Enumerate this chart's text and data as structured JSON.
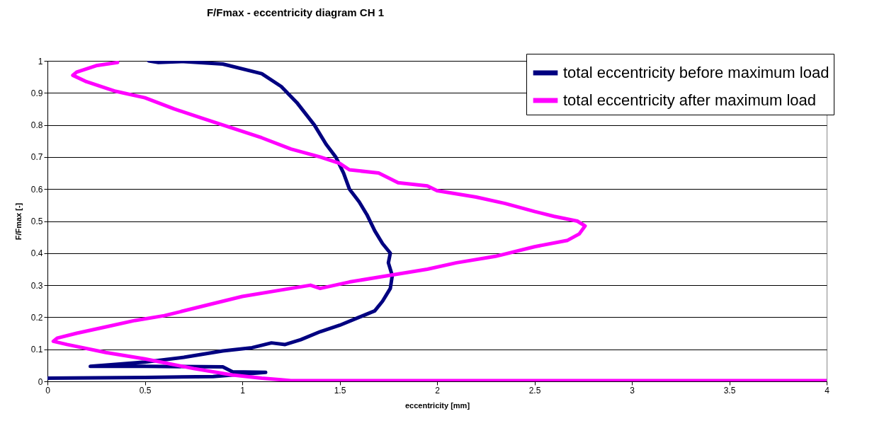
{
  "chart_data": {
    "type": "line",
    "title": "F/Fmax - eccentricity diagram CH 1",
    "xlabel": "eccentricity [mm]",
    "ylabel": "F/Fmax [-]",
    "xlim": [
      0,
      4
    ],
    "xticks": [
      0,
      0.5,
      1,
      1.5,
      2,
      2.5,
      3,
      3.5,
      4
    ],
    "ylim": [
      0,
      1
    ],
    "yticks": [
      0,
      0.1,
      0.2,
      0.3,
      0.4,
      0.5,
      0.6,
      0.7,
      0.8,
      0.9,
      1
    ],
    "grid": "y",
    "legend": "top right",
    "line_style": "solid",
    "marker": "none",
    "series": [
      {
        "name": "total eccentricity before maximum load",
        "color": "#000080",
        "x": [
          0,
          0.5,
          0.85,
          1.12,
          0.95,
          0.9,
          0.5,
          0.22,
          0.5,
          0.7,
          0.9,
          1.05,
          1.15,
          1.22,
          1.3,
          1.4,
          1.5,
          1.6,
          1.68,
          1.72,
          1.76,
          1.77,
          1.75,
          1.76,
          1.72,
          1.68,
          1.64,
          1.6,
          1.55,
          1.52,
          1.48,
          1.43,
          1.37,
          1.28,
          1.2,
          1.1,
          0.9,
          0.7,
          0.57,
          0.52
        ],
        "values": [
          0.01,
          0.012,
          0.015,
          0.028,
          0.03,
          0.045,
          0.047,
          0.047,
          0.06,
          0.075,
          0.095,
          0.105,
          0.12,
          0.115,
          0.13,
          0.155,
          0.175,
          0.2,
          0.22,
          0.25,
          0.29,
          0.33,
          0.37,
          0.4,
          0.43,
          0.47,
          0.52,
          0.56,
          0.6,
          0.65,
          0.7,
          0.74,
          0.8,
          0.87,
          0.92,
          0.96,
          0.99,
          0.998,
          0.995,
          1
        ]
      },
      {
        "name": "total eccentricity after maximum load",
        "color": "#ff00ff",
        "x": [
          0.36,
          0.25,
          0.15,
          0.13,
          0.2,
          0.35,
          0.5,
          0.65,
          0.8,
          0.95,
          1.1,
          1.25,
          1.4,
          1.5,
          1.55,
          1.7,
          1.8,
          1.95,
          2,
          2.2,
          2.35,
          2.5,
          2.6,
          2.72,
          2.76,
          2.73,
          2.67,
          2.5,
          2.3,
          2.1,
          1.95,
          1.85,
          1.7,
          1.55,
          1.4,
          1.35,
          1.2,
          1,
          0.8,
          0.6,
          0.45,
          0.3,
          0.15,
          0.05,
          0.03,
          0.1,
          0.3,
          0.5,
          0.75,
          0.95,
          1.1,
          1.2,
          1.25,
          2,
          4
        ],
        "values": [
          0.995,
          0.985,
          0.965,
          0.955,
          0.935,
          0.905,
          0.885,
          0.85,
          0.82,
          0.79,
          0.76,
          0.725,
          0.7,
          0.68,
          0.66,
          0.65,
          0.62,
          0.61,
          0.595,
          0.575,
          0.555,
          0.53,
          0.515,
          0.5,
          0.485,
          0.46,
          0.44,
          0.42,
          0.39,
          0.37,
          0.35,
          0.34,
          0.325,
          0.31,
          0.29,
          0.3,
          0.285,
          0.265,
          0.235,
          0.205,
          0.19,
          0.17,
          0.15,
          0.135,
          0.125,
          0.115,
          0.09,
          0.07,
          0.04,
          0.02,
          0.01,
          0.005,
          0.002,
          0.002,
          0.002
        ]
      }
    ]
  }
}
